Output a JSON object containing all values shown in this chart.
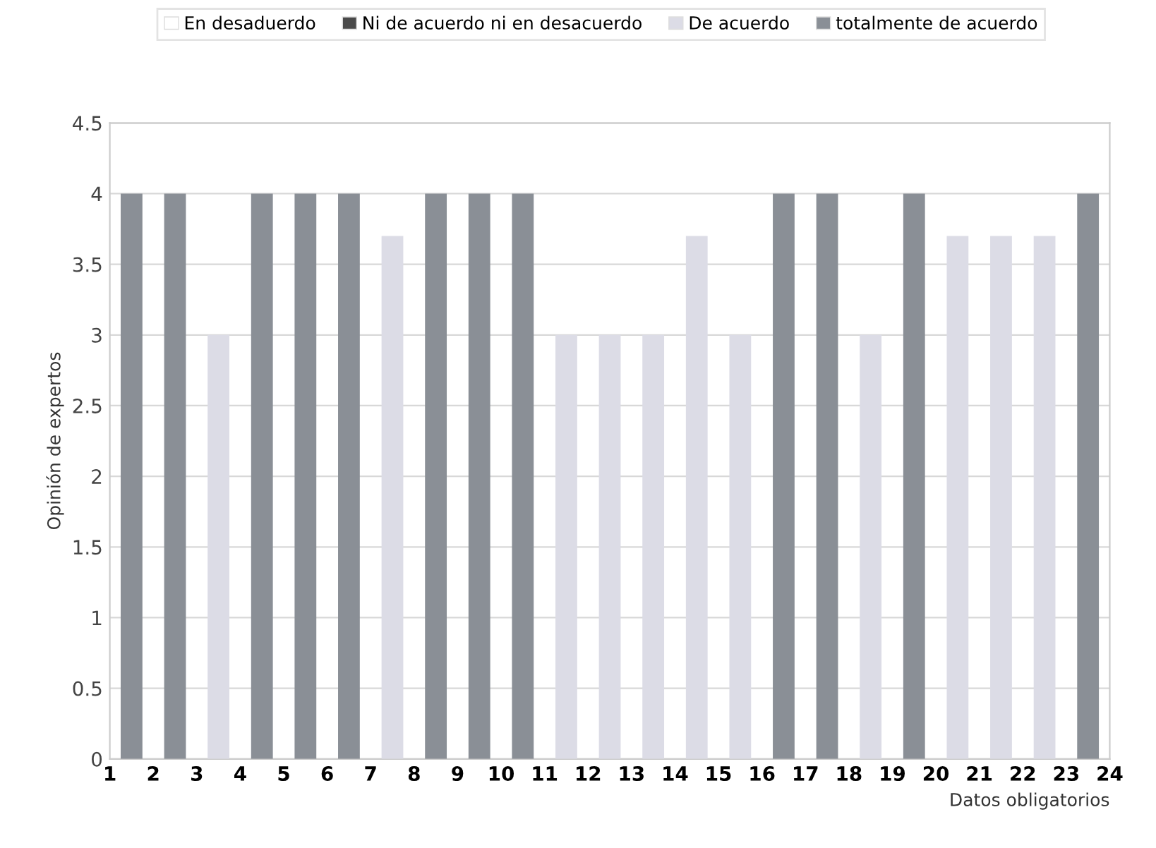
{
  "chart_data": {
    "type": "bar",
    "xlabel": "Datos obligatorios",
    "ylabel": "Opinión de expertos",
    "x": [
      1.5,
      2.5,
      3.5,
      4.5,
      5.5,
      6.5,
      7.5,
      8.5,
      9.5,
      10.5,
      11.5,
      12.5,
      13.5,
      14.5,
      15.5,
      16.5,
      17.5,
      18.5,
      19.5,
      20.5,
      21.5,
      22.5,
      23.5
    ],
    "series": [
      {
        "name": "En desaduerdo",
        "color": "#ffffff",
        "values": [
          null,
          null,
          null,
          null,
          null,
          null,
          null,
          null,
          null,
          null,
          null,
          null,
          null,
          null,
          null,
          null,
          null,
          null,
          null,
          null,
          null,
          null,
          null
        ]
      },
      {
        "name": "Ni de acuerdo ni en desacuerdo",
        "color": "#4a4a4a",
        "values": [
          null,
          null,
          null,
          null,
          null,
          null,
          null,
          null,
          null,
          null,
          null,
          null,
          null,
          null,
          null,
          null,
          null,
          null,
          null,
          null,
          null,
          null,
          null
        ]
      },
      {
        "name": "De acuerdo",
        "color": "#dcdce6",
        "values": [
          null,
          null,
          3,
          null,
          null,
          null,
          3.7,
          null,
          null,
          null,
          3,
          3,
          3,
          3.7,
          3,
          null,
          null,
          3,
          null,
          3.7,
          3.7,
          3.7,
          null
        ]
      },
      {
        "name": "totalmente de acuerdo",
        "color": "#8a8f96",
        "values": [
          4,
          4,
          null,
          4,
          4,
          4,
          null,
          4,
          4,
          4,
          null,
          null,
          null,
          null,
          null,
          4,
          4,
          null,
          4,
          null,
          null,
          null,
          4
        ]
      }
    ],
    "xlim": [
      1,
      24
    ],
    "xticks": [
      1,
      2,
      3,
      4,
      5,
      6,
      7,
      8,
      9,
      10,
      11,
      12,
      13,
      14,
      15,
      16,
      17,
      18,
      19,
      20,
      21,
      22,
      23,
      24
    ],
    "ylim": [
      0,
      4.5
    ],
    "yticks": [
      0,
      0.5,
      1,
      1.5,
      2,
      2.5,
      3,
      3.5,
      4,
      4.5
    ],
    "grid": "y",
    "legend": "top"
  }
}
